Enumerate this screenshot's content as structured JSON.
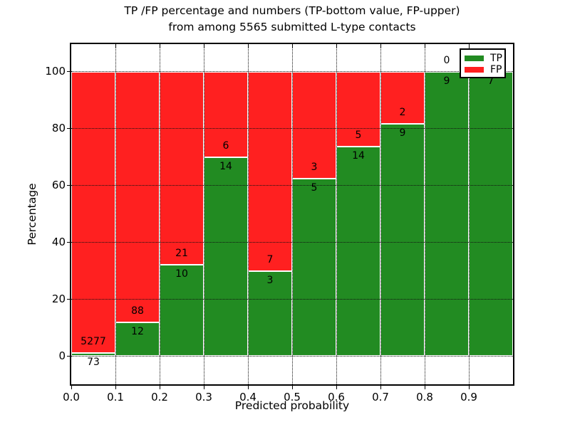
{
  "title": {
    "line1": "TP /FP percentage and numbers (TP-bottom value, FP-upper)",
    "line2": "from among 5565 submitted L-type contacts"
  },
  "axes": {
    "xlabel": "Predicted probability",
    "ylabel": "Percentage",
    "xtick_labels": [
      "0.0",
      "0.1",
      "0.2",
      "0.3",
      "0.4",
      "0.5",
      "0.6",
      "0.7",
      "0.8",
      "0.9"
    ],
    "ytick_labels": [
      "0",
      "20",
      "40",
      "60",
      "80",
      "100"
    ]
  },
  "legend": {
    "position": "upper-right",
    "items": [
      {
        "label": "TP",
        "color": "#228B22"
      },
      {
        "label": "FP",
        "color": "#FF2020"
      }
    ]
  },
  "colors": {
    "tp": "#228B22",
    "fp": "#FF2020",
    "background": "#ffffff",
    "grid": "#111111",
    "bar_edge": "#ffffff"
  },
  "chart_data": {
    "type": "bar",
    "stacked": true,
    "normalized": "each bin stacked to 100%",
    "title": "TP /FP percentage and numbers (TP-bottom value, FP-upper) from among 5565 submitted L-type contacts",
    "xlabel": "Predicted probability",
    "ylabel": "Percentage",
    "xlim": [
      0.0,
      1.0
    ],
    "ylim": [
      -10,
      109.5
    ],
    "grid": "dotted, on x ticks every 0.1 and y ticks every 20",
    "legend_position": "upper right",
    "bin_edges": [
      0.0,
      0.1,
      0.2,
      0.3,
      0.4,
      0.5,
      0.6,
      0.7,
      0.8,
      0.9,
      1.0
    ],
    "categories": [
      "0.0-0.1",
      "0.1-0.2",
      "0.2-0.3",
      "0.3-0.4",
      "0.4-0.5",
      "0.5-0.6",
      "0.6-0.7",
      "0.7-0.8",
      "0.8-0.9",
      "0.9-1.0"
    ],
    "series": [
      {
        "name": "TP",
        "color": "#228B22",
        "counts": [
          73,
          12,
          10,
          14,
          3,
          5,
          14,
          9,
          9,
          7
        ]
      },
      {
        "name": "FP",
        "color": "#FF2020",
        "counts": [
          5277,
          88,
          21,
          6,
          7,
          3,
          5,
          2,
          0,
          0
        ]
      }
    ],
    "tp_percent": [
      1.36,
      12.0,
      32.26,
      70.0,
      30.0,
      62.5,
      73.68,
      81.82,
      100.0,
      100.0
    ],
    "total_contacts": 5565
  }
}
